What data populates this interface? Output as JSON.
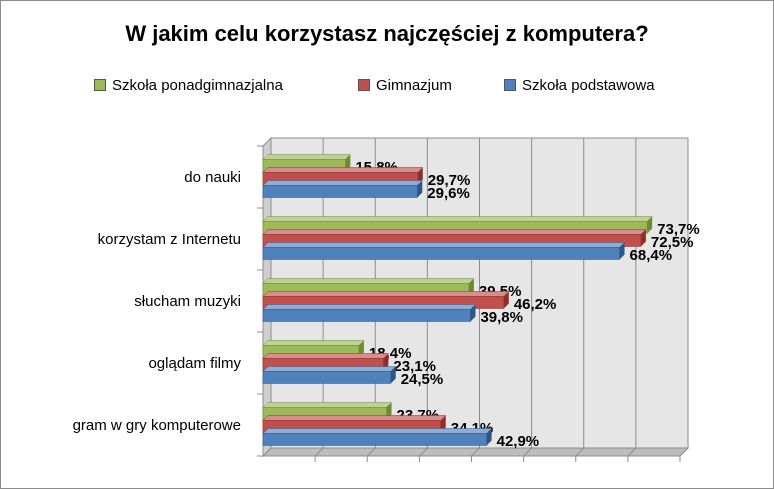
{
  "chart_data": {
    "type": "bar",
    "orientation": "horizontal",
    "title": "W jakim celu korzystasz najczęściej z komputera?",
    "categories": [
      "do nauki",
      "korzystam z Internetu",
      "słucham muzyki",
      "oglądam filmy",
      "gram w gry komputerowe"
    ],
    "series": [
      {
        "name": "Szkoła ponadgimnazjalna",
        "color": "#9bbb59",
        "edge": "#6f8a35",
        "values": [
          15.8,
          73.7,
          39.5,
          18.4,
          23.7
        ],
        "labels": [
          "15,8%",
          "73,7%",
          "39,5%",
          "18,4%",
          "23,7%"
        ]
      },
      {
        "name": "Gimnazjum",
        "color": "#c0504d",
        "edge": "#8e2f2c",
        "values": [
          29.7,
          72.5,
          46.2,
          23.1,
          34.1
        ],
        "labels": [
          "29,7%",
          "72,5%",
          "46,2%",
          "23,1%",
          "34,1%"
        ]
      },
      {
        "name": "Szkoła podstawowa",
        "color": "#4f81bd",
        "edge": "#2e5686",
        "values": [
          29.6,
          68.4,
          39.8,
          24.5,
          42.9
        ],
        "labels": [
          "29,6%",
          "68,4%",
          "39,8%",
          "24,5%",
          "42,9%"
        ]
      }
    ],
    "xlim": [
      0,
      80
    ],
    "grid": true,
    "legend": "top",
    "three_d": true
  }
}
